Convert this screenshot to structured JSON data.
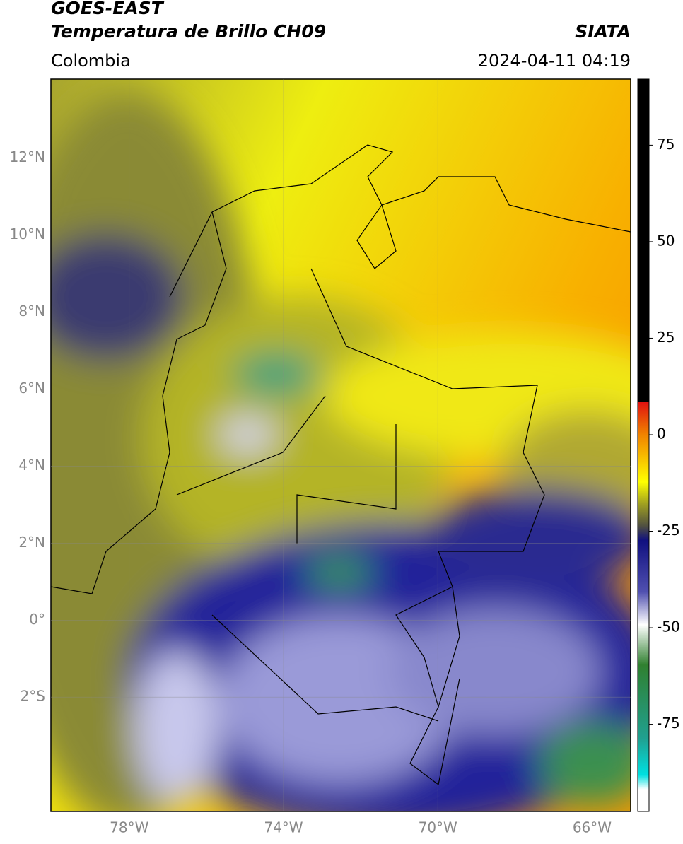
{
  "header": {
    "title": "GOES-EAST",
    "subtitle": "Temperatura de Brillo CH09",
    "source": "SIATA",
    "region": "Colombia",
    "datetime": "2024-04-11 04:19"
  },
  "map": {
    "latlim": [
      -4.97,
      14.05
    ],
    "lonlim": [
      -80.03,
      -65.0
    ],
    "lat_ticks": [
      {
        "value": 12,
        "label": "12°N"
      },
      {
        "value": 10,
        "label": "10°N"
      },
      {
        "value": 8,
        "label": "8°N"
      },
      {
        "value": 6,
        "label": "6°N"
      },
      {
        "value": 4,
        "label": "4°N"
      },
      {
        "value": 2,
        "label": "2°N"
      },
      {
        "value": 0,
        "label": "0°"
      },
      {
        "value": -2,
        "label": "2°S"
      }
    ],
    "lon_ticks": [
      {
        "value": -78,
        "label": "78°W"
      },
      {
        "value": -74,
        "label": "74°W"
      },
      {
        "value": -70,
        "label": "70°W"
      },
      {
        "value": -66,
        "label": "66°W"
      }
    ]
  },
  "colorbar": {
    "lim": [
      -97.6,
      92.1
    ],
    "ticks": [
      75,
      50,
      25,
      0,
      -25,
      -50,
      -75
    ]
  }
}
